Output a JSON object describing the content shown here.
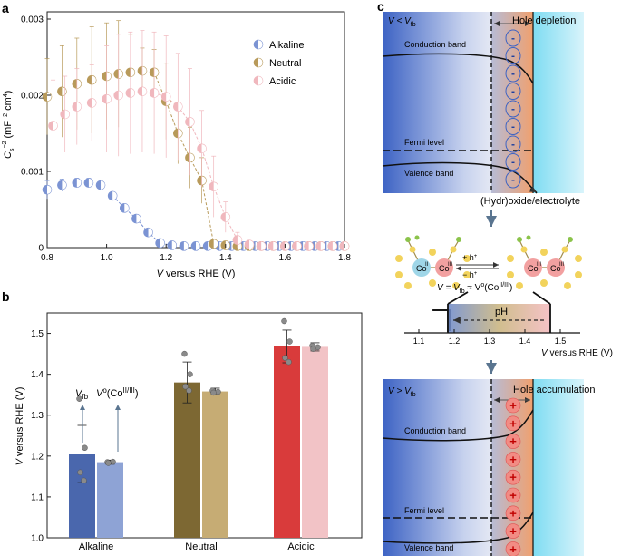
{
  "panels": {
    "a": "a",
    "b": "b",
    "c": "c"
  },
  "chart_data": [
    {
      "type": "scatter",
      "panel": "a",
      "ylabel": "C_s^-2 (mF^-2 cm^4)",
      "xlabel": "V versus RHE (V)",
      "xlim": [
        0.8,
        1.8
      ],
      "ylim": [
        0,
        0.003
      ],
      "xticks": [
        "0.8",
        "1.0",
        "1.2",
        "1.4",
        "1.6",
        "1.8"
      ],
      "yticks": [
        "0",
        "0.001",
        "0.002",
        "0.003"
      ],
      "legend": [
        "Alkaline",
        "Neutral",
        "Acidic"
      ],
      "colors": {
        "Alkaline": "#7b93d3",
        "Neutral": "#b89a5a",
        "Acidic": "#f0b7bd"
      },
      "series": [
        {
          "name": "Alkaline",
          "points": [
            [
              0.8,
              0.00076
            ],
            [
              0.85,
              0.00082
            ],
            [
              0.9,
              0.00085
            ],
            [
              0.94,
              0.00085
            ],
            [
              0.98,
              0.00082
            ],
            [
              1.02,
              0.00068
            ],
            [
              1.06,
              0.00052
            ],
            [
              1.1,
              0.00038
            ],
            [
              1.14,
              0.0002
            ],
            [
              1.18,
              6e-05
            ],
            [
              1.22,
              3e-05
            ],
            [
              1.26,
              2e-05
            ],
            [
              1.3,
              2e-05
            ],
            [
              1.34,
              2e-05
            ],
            [
              1.38,
              2e-05
            ],
            [
              1.42,
              2e-05
            ],
            [
              1.46,
              2e-05
            ],
            [
              1.5,
              2e-05
            ],
            [
              1.54,
              2e-05
            ],
            [
              1.58,
              2e-05
            ],
            [
              1.62,
              2e-05
            ],
            [
              1.66,
              2e-05
            ],
            [
              1.7,
              2e-05
            ],
            [
              1.74,
              2e-05
            ],
            [
              1.78,
              2e-05
            ]
          ],
          "errors": [
            0.00012,
            8e-05,
            6e-05,
            6e-05,
            5e-05,
            3e-05,
            2e-05,
            2e-05,
            2e-05,
            1e-05,
            1e-05,
            1e-05,
            1e-05,
            1e-05,
            1e-05,
            1e-05,
            1e-05,
            1e-05,
            1e-05,
            1e-05,
            1e-05,
            1e-05,
            1e-05,
            1e-05,
            1e-05
          ]
        },
        {
          "name": "Neutral",
          "points": [
            [
              0.8,
              0.00198
            ],
            [
              0.85,
              0.00205
            ],
            [
              0.9,
              0.00215
            ],
            [
              0.95,
              0.0022
            ],
            [
              1.0,
              0.00225
            ],
            [
              1.04,
              0.00228
            ],
            [
              1.08,
              0.0023
            ],
            [
              1.12,
              0.00232
            ],
            [
              1.16,
              0.0023
            ],
            [
              1.2,
              0.00192
            ],
            [
              1.24,
              0.0015
            ],
            [
              1.28,
              0.00118
            ],
            [
              1.32,
              0.00088
            ],
            [
              1.36,
              5e-05
            ],
            [
              1.4,
              3e-05
            ],
            [
              1.44,
              2e-05
            ],
            [
              1.48,
              2e-05
            ],
            [
              1.52,
              2e-05
            ],
            [
              1.56,
              2e-05
            ],
            [
              1.6,
              2e-05
            ],
            [
              1.64,
              2e-05
            ],
            [
              1.68,
              2e-05
            ],
            [
              1.72,
              2e-05
            ],
            [
              1.76,
              2e-05
            ],
            [
              1.8,
              2e-05
            ]
          ],
          "errors": [
            0.0005,
            0.0006,
            0.0006,
            0.0007,
            0.0007,
            0.0007,
            0.0005,
            0.0003,
            0.0003,
            0.0005,
            0.0004,
            0.0004,
            0.0003,
            5e-05,
            3e-05,
            2e-05,
            2e-05,
            2e-05,
            2e-05,
            2e-05,
            2e-05,
            2e-05,
            2e-05,
            2e-05,
            2e-05
          ]
        },
        {
          "name": "Acidic",
          "points": [
            [
              0.82,
              0.0016
            ],
            [
              0.86,
              0.00175
            ],
            [
              0.9,
              0.00185
            ],
            [
              0.95,
              0.0019
            ],
            [
              1.0,
              0.00195
            ],
            [
              1.04,
              0.002
            ],
            [
              1.08,
              0.00203
            ],
            [
              1.12,
              0.00205
            ],
            [
              1.16,
              0.00203
            ],
            [
              1.2,
              0.00198
            ],
            [
              1.24,
              0.00185
            ],
            [
              1.28,
              0.00165
            ],
            [
              1.32,
              0.0013
            ],
            [
              1.36,
              0.0008
            ],
            [
              1.4,
              0.0004
            ],
            [
              1.44,
              0.0001
            ],
            [
              1.48,
              4e-05
            ],
            [
              1.52,
              2e-05
            ],
            [
              1.56,
              2e-05
            ],
            [
              1.6,
              2e-05
            ],
            [
              1.64,
              2e-05
            ],
            [
              1.68,
              2e-05
            ],
            [
              1.72,
              2e-05
            ],
            [
              1.76,
              2e-05
            ],
            [
              1.8,
              2e-05
            ]
          ],
          "errors": [
            0.0006,
            0.0005,
            0.0005,
            0.0005,
            0.0007,
            0.0008,
            0.0008,
            0.0008,
            0.0008,
            0.0008,
            0.0007,
            0.0007,
            0.0005,
            0.0004,
            0.0002,
            0.0001,
            5e-05,
            3e-05,
            3e-05,
            3e-05,
            3e-05,
            3e-05,
            3e-05,
            3e-05,
            3e-05
          ]
        }
      ],
      "fits": [
        {
          "name": "Alkaline",
          "x": [
            1.02,
            1.2
          ]
        },
        {
          "name": "Neutral",
          "x": [
            1.13,
            1.38
          ]
        },
        {
          "name": "Acidic",
          "x": [
            1.13,
            1.47
          ]
        }
      ]
    },
    {
      "type": "bar",
      "panel": "b",
      "ylabel": "V versus RHE (V)",
      "ylim": [
        1.0,
        1.55
      ],
      "yticks": [
        "1.0",
        "1.1",
        "1.2",
        "1.3",
        "1.4",
        "1.5"
      ],
      "categories": [
        "Alkaline",
        "Neutral",
        "Acidic"
      ],
      "series": [
        {
          "name": "Vfb",
          "values": [
            1.205,
            1.38,
            1.468
          ],
          "errors": [
            0.07,
            0.05,
            0.04
          ],
          "colors": [
            "#4a67ad",
            "#7d6833",
            "#d93b3b"
          ],
          "dots": [
            [
              1.34,
              1.22,
              1.16,
              1.14
            ],
            [
              1.45,
              1.4,
              1.37,
              1.36
            ],
            [
              1.53,
              1.48,
              1.44,
              1.43
            ]
          ]
        },
        {
          "name": "V°(Co(II/III))",
          "values": [
            1.185,
            1.358,
            1.467
          ],
          "errors": [
            0.005,
            0.008,
            0.01
          ],
          "colors": [
            "#8ea3d5",
            "#c6ac74",
            "#f2c3c6"
          ],
          "dots": [
            [
              1.185,
              1.186,
              1.183
            ],
            [
              1.36,
              1.357,
              1.355
            ],
            [
              1.47,
              1.466,
              1.462
            ]
          ]
        }
      ],
      "annotations": {
        "vfb": "V",
        "vfb_sub": "fb",
        "v0": "V",
        "v0_sup": "o",
        "v0_paren": "(Co",
        "v0_sup2": "II/III",
        "close_paren": ")"
      }
    }
  ],
  "panel_c": {
    "top": {
      "condition": "V < V",
      "condition_sub": "fb",
      "title": "Hole depletion",
      "cb": "Conduction band",
      "fermi": "Fermi level",
      "vb": "Valence band",
      "charge": "-",
      "charge_count": 9
    },
    "electrolyte_label": "(Hydr)oxide/electrolyte",
    "middle": {
      "co_a": "Co",
      "co_a_sup": "II",
      "co_b": "Co",
      "co_b_sup": "III",
      "plus_h": "+ h",
      "minus_h": "− h",
      "h_sup": "+",
      "equation_main": "V = V",
      "equation_sub": "fb",
      "equation_rest": " ≈ V",
      "equation_sup": "o",
      "equation_paren": "(Co",
      "equation_paren_sup": "II/III",
      "equation_close": ")",
      "ph": "pH",
      "ticks": [
        "1.1",
        "1.2",
        "1.3",
        "1.4",
        "1.5"
      ],
      "axis_label": "V versus RHE (V)"
    },
    "bottom": {
      "condition": "V > V",
      "condition_sub": "fb",
      "title": "Hole accumulation",
      "cb": "Conduction band",
      "fermi": "Fermi level",
      "vb": "Valence band",
      "charge": "+",
      "charge_count": 9
    }
  }
}
